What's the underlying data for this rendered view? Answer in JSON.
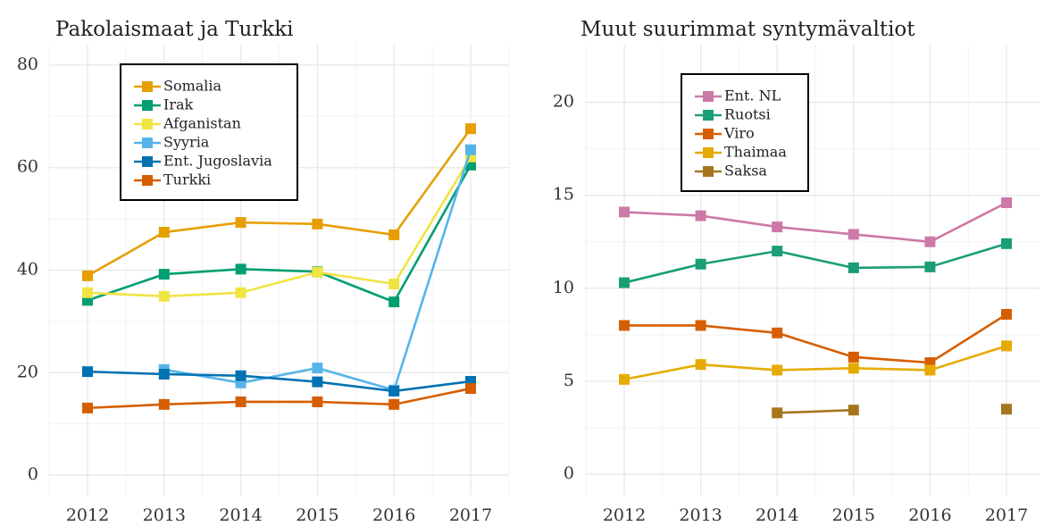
{
  "chart_data": [
    {
      "type": "line",
      "title": "Pakolaismaat ja Turkki",
      "categories": [
        "2012",
        "2013",
        "2014",
        "2015",
        "2016",
        "2017"
      ],
      "ylim": [
        -4,
        84
      ],
      "yticks": [
        0,
        20,
        40,
        60,
        80
      ],
      "grid": true,
      "legend": "top-left",
      "series": [
        {
          "name": "Somalia",
          "color": "#E69F00",
          "values": [
            38.9,
            47.4,
            49.3,
            49.0,
            46.9,
            67.6
          ]
        },
        {
          "name": "Irak",
          "color": "#009E73",
          "values": [
            34.1,
            39.2,
            40.2,
            39.7,
            33.8,
            60.5
          ]
        },
        {
          "name": "Afganistan",
          "color": "#F0E442",
          "values": [
            35.6,
            34.9,
            35.6,
            39.6,
            37.3,
            62.1
          ]
        },
        {
          "name": "Syyria",
          "color": "#56B4E9",
          "values": [
            null,
            20.6,
            18.0,
            20.9,
            16.6,
            63.5
          ]
        },
        {
          "name": "Ent. Jugoslavia",
          "color": "#0072B2",
          "values": [
            20.2,
            19.7,
            19.4,
            18.2,
            16.4,
            18.3
          ]
        },
        {
          "name": "Turkki",
          "color": "#D55E00",
          "values": [
            13.1,
            13.8,
            14.3,
            14.3,
            13.8,
            16.9
          ]
        }
      ]
    },
    {
      "type": "line",
      "title": "Muut suurimmat syntymävaltiot",
      "categories": [
        "2012",
        "2013",
        "2014",
        "2015",
        "2016",
        "2017"
      ],
      "ylim": [
        -1.15,
        23.1
      ],
      "yticks": [
        0,
        5,
        10,
        15,
        20
      ],
      "grid": true,
      "legend": "top-left",
      "series": [
        {
          "name": "Ent. NL",
          "color": "#CC79A7",
          "values": [
            14.1,
            13.9,
            13.3,
            12.9,
            12.5,
            14.6
          ]
        },
        {
          "name": "Ruotsi",
          "color": "#1B9E77",
          "values": [
            10.3,
            11.3,
            12.0,
            11.1,
            11.15,
            12.4
          ]
        },
        {
          "name": "Viro",
          "color": "#D55E00",
          "values": [
            8.0,
            8.0,
            7.6,
            6.3,
            6.0,
            8.6
          ]
        },
        {
          "name": "Thaimaa",
          "color": "#E6AB02",
          "values": [
            5.1,
            5.9,
            5.6,
            5.7,
            5.6,
            6.9
          ]
        },
        {
          "name": "Saksa",
          "color": "#A6761D",
          "values": [
            null,
            null,
            3.3,
            3.45,
            null,
            3.5
          ]
        }
      ]
    }
  ]
}
